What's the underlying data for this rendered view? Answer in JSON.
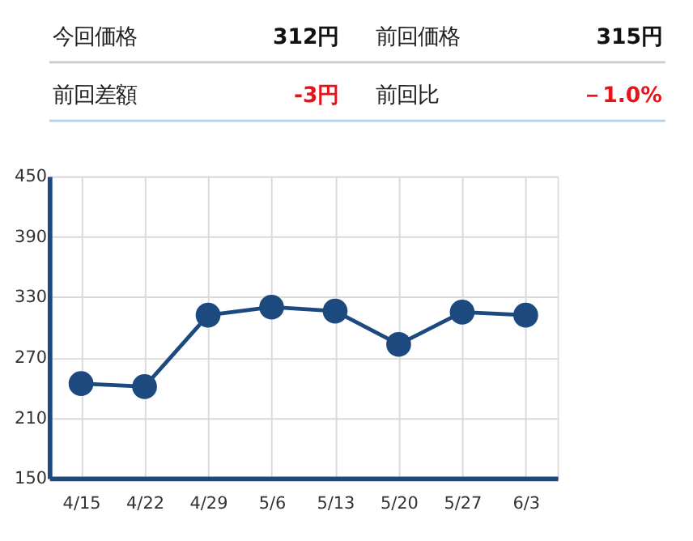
{
  "chart_data": [
    {
      "type": "other",
      "annotations": [
        "今回価格",
        "312円",
        "前回価格",
        "315円",
        "前回差額",
        "-3円",
        "前回比",
        "－1.0%"
      ],
      "colors": [
        "#222222",
        "#111111",
        "#222222",
        "#111111",
        "#222222",
        "#e8141c",
        "#222222",
        "#e8141c"
      ]
    },
    {
      "type": "line",
      "categories": [
        "4/15",
        "4/22",
        "4/29",
        "5/6",
        "5/13",
        "5/20",
        "5/27",
        "6/3"
      ],
      "series": [
        {
          "color": "#1d4a7e",
          "values": [
            244,
            241,
            312,
            320,
            316,
            283,
            315,
            312
          ]
        }
      ],
      "ylim": [
        150,
        450
      ],
      "yticks": [
        150,
        210,
        270,
        330,
        390,
        450
      ],
      "grid": true,
      "marker": "circle",
      "line_style": "solid"
    }
  ]
}
